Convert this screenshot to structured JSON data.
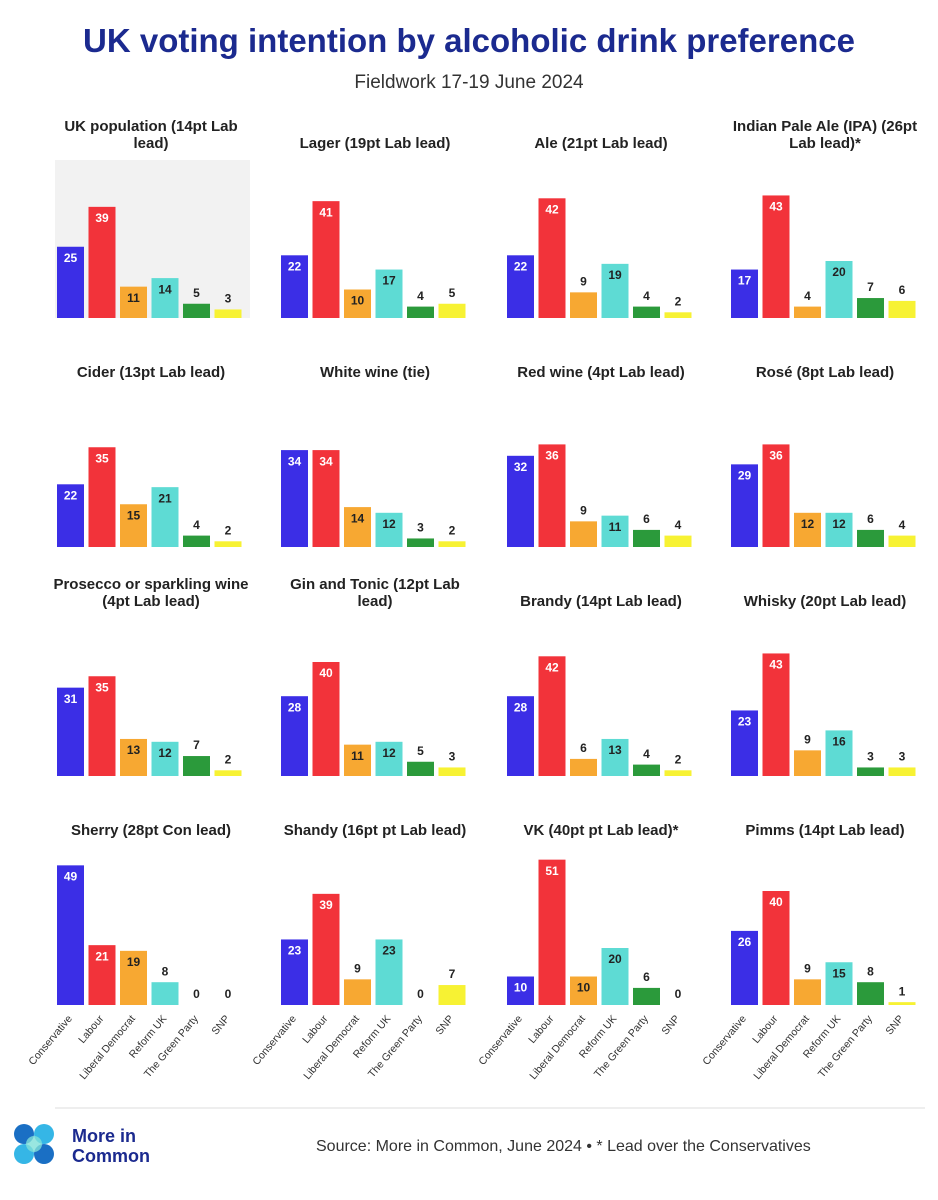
{
  "title": "UK voting intention by alcoholic drink preference",
  "subtitle": "Fieldwork 17-19 June 2024",
  "logo_text": "More in Common",
  "source": "Source: More in Common, June 2024 • * Lead over the Conservatives",
  "bar_colors": [
    "#3b2ee6",
    "#f2333a",
    "#f7a832",
    "#5edbd4",
    "#2b9a3b",
    "#f7f233"
  ],
  "chart_data": [
    {
      "type": "bar",
      "title": "UK population (14pt Lab lead)",
      "values": [
        25,
        39,
        11,
        14,
        5,
        3
      ],
      "highlight": true
    },
    {
      "type": "bar",
      "title": "Lager (19pt Lab lead)",
      "values": [
        22,
        41,
        10,
        17,
        4,
        5
      ]
    },
    {
      "type": "bar",
      "title": "Ale (21pt Lab lead)",
      "values": [
        22,
        42,
        9,
        19,
        4,
        2
      ]
    },
    {
      "type": "bar",
      "title": "Indian Pale Ale (IPA) (26pt Lab lead)*",
      "values": [
        17,
        43,
        4,
        20,
        7,
        6
      ]
    },
    {
      "type": "bar",
      "title": "Cider (13pt Lab lead)",
      "values": [
        22,
        35,
        15,
        21,
        4,
        2
      ]
    },
    {
      "type": "bar",
      "title": "White wine (tie)",
      "values": [
        34,
        34,
        14,
        12,
        3,
        2
      ]
    },
    {
      "type": "bar",
      "title": "Red wine (4pt Lab lead)",
      "values": [
        32,
        36,
        9,
        11,
        6,
        4
      ]
    },
    {
      "type": "bar",
      "title": "Rosé (8pt Lab lead)",
      "values": [
        29,
        36,
        12,
        12,
        6,
        4
      ]
    },
    {
      "type": "bar",
      "title": "Prosecco or sparkling wine (4pt Lab lead)",
      "values": [
        31,
        35,
        13,
        12,
        7,
        2
      ]
    },
    {
      "type": "bar",
      "title": "Gin and Tonic (12pt Lab lead)",
      "values": [
        28,
        40,
        11,
        12,
        5,
        3
      ]
    },
    {
      "type": "bar",
      "title": "Brandy (14pt Lab lead)",
      "values": [
        28,
        42,
        6,
        13,
        4,
        2
      ]
    },
    {
      "type": "bar",
      "title": "Whisky (20pt Lab lead)",
      "values": [
        23,
        43,
        9,
        16,
        3,
        3
      ]
    },
    {
      "type": "bar",
      "title": "Sherry (28pt Con lead)",
      "values": [
        49,
        21,
        19,
        8,
        0,
        0
      ],
      "categories": [
        "Conservative",
        "Labour",
        "Liberal Democrat",
        "Reform UK",
        "The Green Party",
        "SNP"
      ]
    },
    {
      "type": "bar",
      "title": "Shandy (16pt pt Lab lead)",
      "values": [
        23,
        39,
        9,
        23,
        0,
        7
      ],
      "categories": [
        "Conservative",
        "Labour",
        "Liberal Democrat",
        "Reform UK",
        "The Green Party",
        "SNP"
      ]
    },
    {
      "type": "bar",
      "title": "VK (40pt pt Lab lead)*",
      "values": [
        10,
        51,
        10,
        20,
        6,
        0
      ],
      "categories": [
        "Conservative",
        "Labour",
        "Liberal Democrat",
        "Reform UK",
        "The Green Party",
        "SNP"
      ]
    },
    {
      "type": "bar",
      "title": "Pimms (14pt Lab lead)",
      "values": [
        26,
        40,
        9,
        15,
        8,
        1
      ],
      "categories": [
        "Conservative",
        "Labour",
        "Liberal Democrat",
        "Reform UK",
        "The Green Party",
        "SNP"
      ]
    }
  ]
}
